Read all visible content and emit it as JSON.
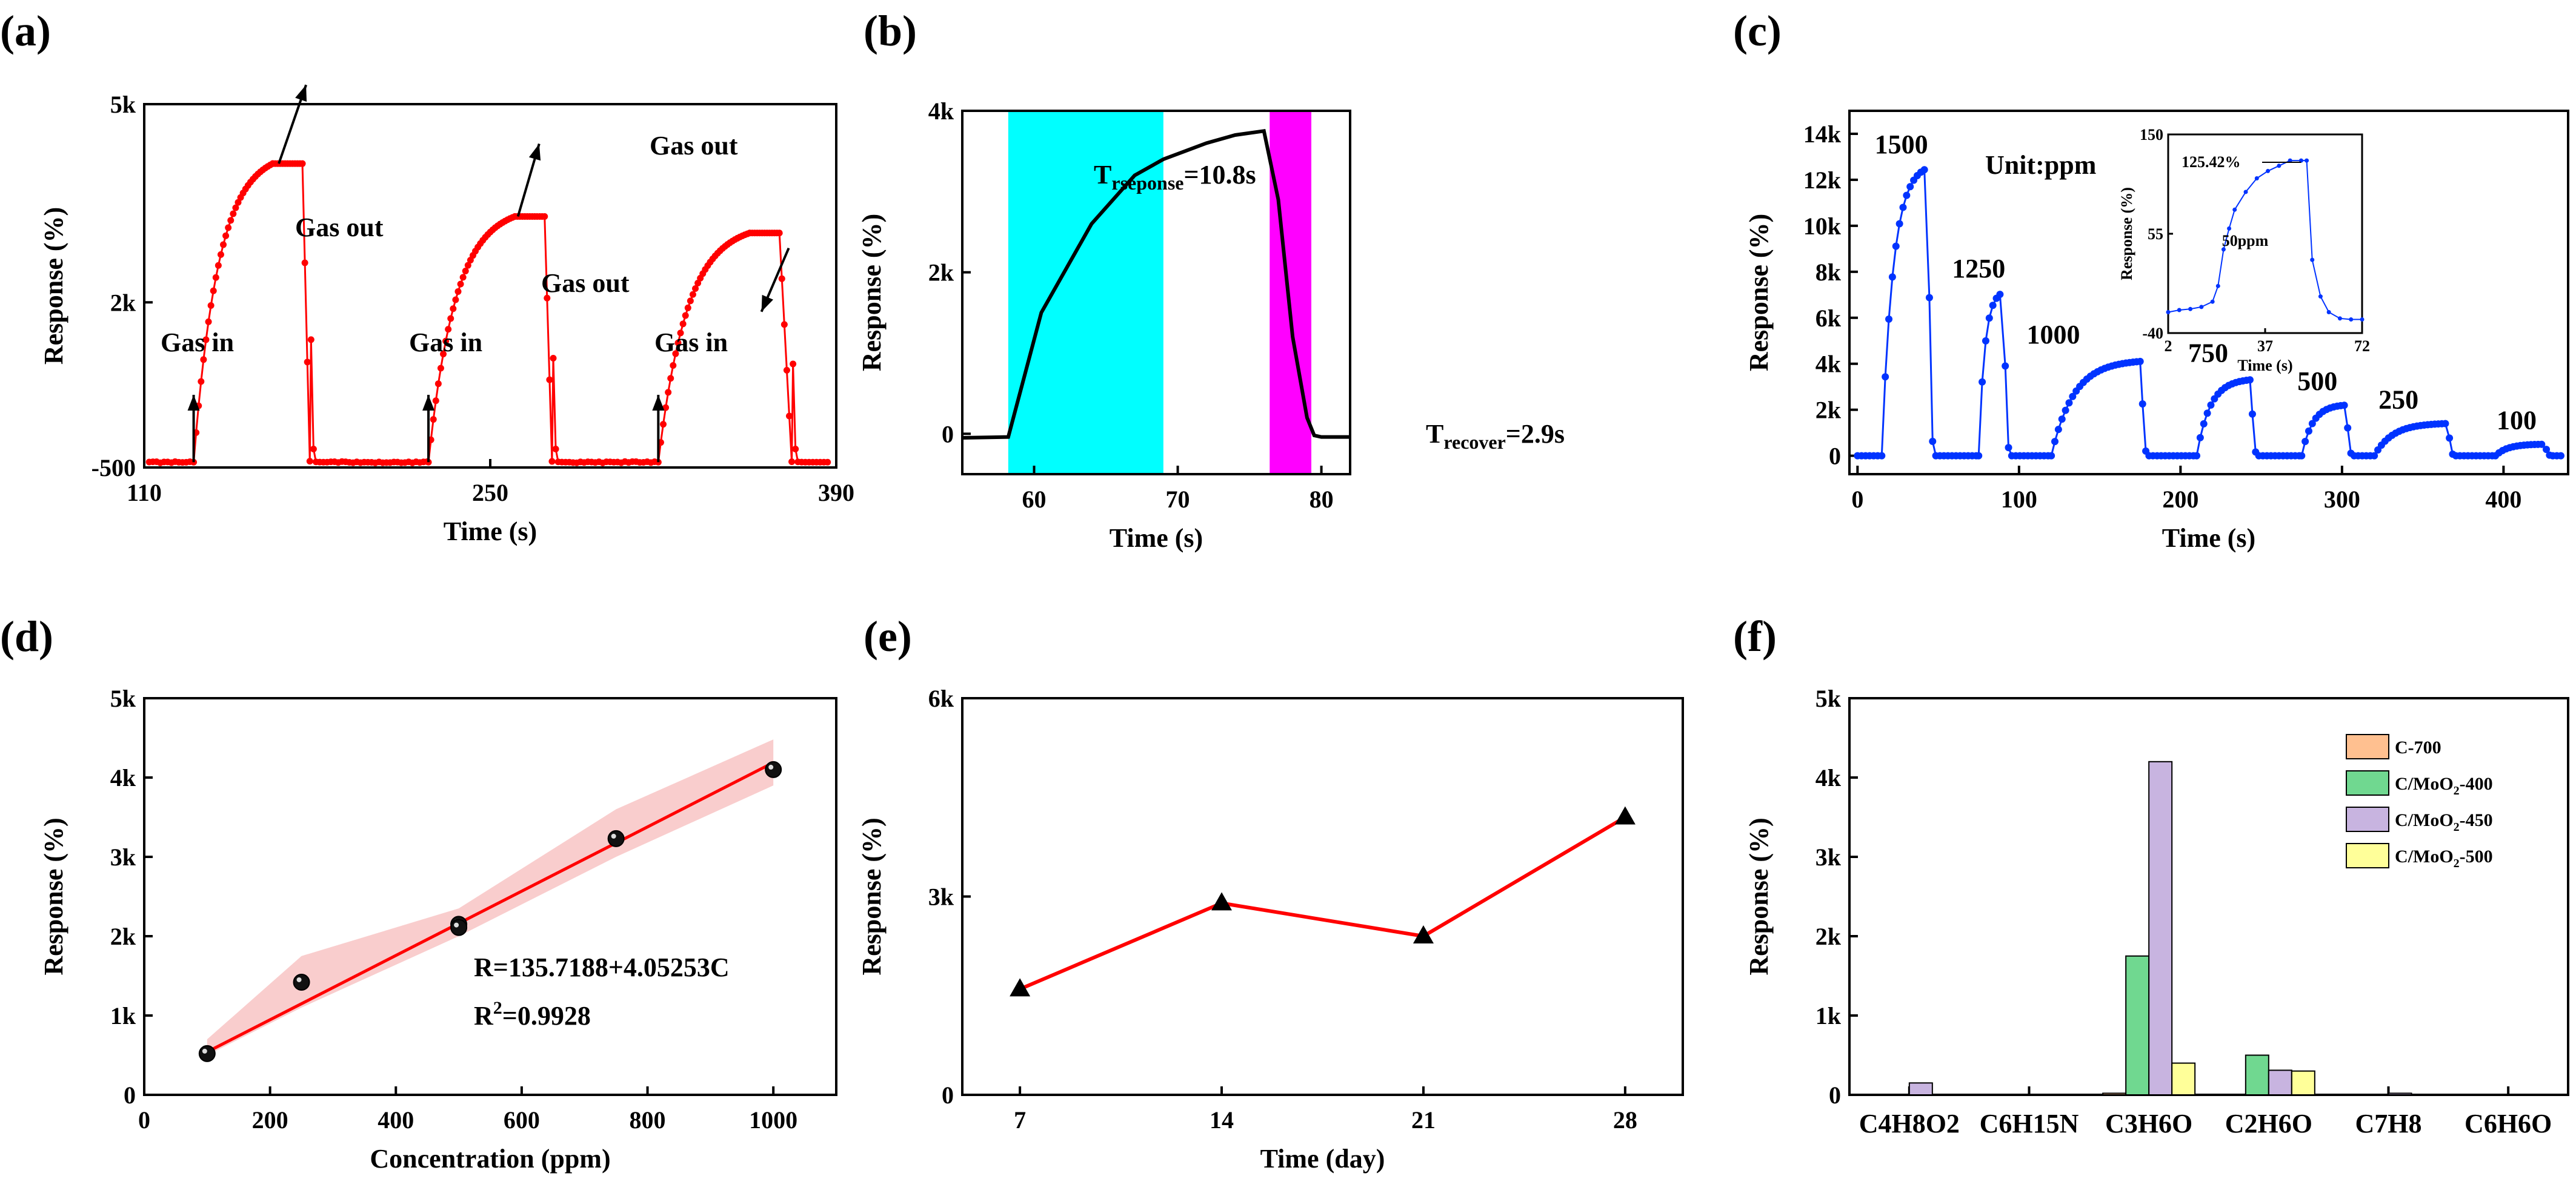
{
  "colors": {
    "red": "#ff0000",
    "blue": "#0033ff",
    "cyan": "#00ffff",
    "magenta": "#ff00ff",
    "black": "#000000",
    "c700": "#ffc090",
    "c400": "#70d890",
    "c450": "#c8b4e0",
    "c500": "#ffff99",
    "band": "#f7c0c0"
  },
  "chart_data": [
    {
      "id": "a",
      "panel_label": "(a)",
      "type": "line",
      "xlabel": "Time (s)",
      "ylabel": "Response (%)",
      "xlim": [
        110,
        390
      ],
      "ylim": [
        -500,
        5000
      ],
      "xticks": [
        {
          "v": 110,
          "t": "110"
        },
        {
          "v": 250,
          "t": "250"
        },
        {
          "v": 390,
          "t": "390"
        }
      ],
      "yticks": [
        {
          "v": -500,
          "t": "-500"
        },
        {
          "v": 2000,
          "t": "2k"
        },
        {
          "v": 5000,
          "t": "5k"
        }
      ],
      "cycles": [
        {
          "on": 130,
          "peak": 162,
          "off": 177,
          "pmax": 4100
        },
        {
          "on": 225,
          "peak": 260,
          "off": 275,
          "pmax": 3300
        },
        {
          "on": 318,
          "peak": 355,
          "off": 372,
          "pmax": 3050
        }
      ],
      "annotations": [
        "Gas in",
        "Gas out",
        "Gas in",
        "Gas out",
        "Gas in",
        "Gas out"
      ]
    },
    {
      "id": "b",
      "panel_label": "(b)",
      "type": "line",
      "xlabel": "Time (s)",
      "ylabel": "Response (%)",
      "xlim": [
        55,
        82
      ],
      "ylim": [
        -500,
        4000
      ],
      "xticks": [
        {
          "v": 60,
          "t": "60"
        },
        {
          "v": 70,
          "t": "70"
        },
        {
          "v": 80,
          "t": "80"
        }
      ],
      "yticks": [
        {
          "v": 0,
          "t": "0"
        },
        {
          "v": 2000,
          "t": "2k"
        },
        {
          "v": 4000,
          "t": "4k"
        }
      ],
      "x": [
        55,
        58.2,
        60.5,
        64,
        67,
        69,
        72,
        74,
        76,
        77,
        78,
        79,
        79.5,
        80,
        82
      ],
      "y": [
        -50,
        -40,
        1500,
        2600,
        3200,
        3400,
        3600,
        3700,
        3750,
        2900,
        1200,
        200,
        -20,
        -40,
        -40
      ],
      "response_window": [
        58.2,
        69
      ],
      "recover_window": [
        76.4,
        79.3
      ],
      "t_response_label": "T",
      "t_response_sub": "rseponse",
      "t_response_value": "=10.8s",
      "t_recover_label": "T",
      "t_recover_sub": "recover",
      "t_recover_value": "=2.9s"
    },
    {
      "id": "c",
      "panel_label": "(c)",
      "type": "scatter",
      "xlabel": "Time (s)",
      "ylabel": "Response (%)",
      "xlim": [
        -5,
        440
      ],
      "ylim": [
        -800,
        15000
      ],
      "xticks": [
        {
          "v": 0,
          "t": "0"
        },
        {
          "v": 100,
          "t": "100"
        },
        {
          "v": 200,
          "t": "200"
        },
        {
          "v": 300,
          "t": "300"
        },
        {
          "v": 400,
          "t": "400"
        }
      ],
      "yticks": [
        {
          "v": 0,
          "t": "0"
        },
        {
          "v": 2000,
          "t": "2k"
        },
        {
          "v": 4000,
          "t": "4k"
        },
        {
          "v": 6000,
          "t": "6k"
        },
        {
          "v": 8000,
          "t": "8k"
        },
        {
          "v": 10000,
          "t": "10k"
        },
        {
          "v": 12000,
          "t": "12k"
        },
        {
          "v": 14000,
          "t": "14k"
        }
      ],
      "pulses": [
        {
          "on": 15,
          "off": 43,
          "max": 12500,
          "label": "1500"
        },
        {
          "on": 75,
          "off": 90,
          "max": 7100,
          "label": "1250"
        },
        {
          "on": 120,
          "off": 175,
          "max": 4100,
          "label": "1000"
        },
        {
          "on": 210,
          "off": 243,
          "max": 3300,
          "label": "750"
        },
        {
          "on": 275,
          "off": 302,
          "max": 2200,
          "label": "500"
        },
        {
          "on": 320,
          "off": 365,
          "max": 1400,
          "label": "250"
        },
        {
          "on": 395,
          "off": 425,
          "max": 500,
          "label": "100"
        }
      ],
      "unit_label": "Unit:ppm",
      "inset": {
        "xlabel": "Time (s)",
        "ylabel": "Response (%)",
        "xlim": [
          2,
          72
        ],
        "ylim": [
          -40,
          150
        ],
        "xticks": [
          {
            "v": 2,
            "t": "2"
          },
          {
            "v": 37,
            "t": "37"
          },
          {
            "v": 72,
            "t": "72"
          }
        ],
        "yticks": [
          {
            "v": -40,
            "t": "-40"
          },
          {
            "v": 55,
            "t": "55"
          },
          {
            "v": 150,
            "t": "150"
          }
        ],
        "x": [
          2,
          6,
          10,
          14,
          18,
          20,
          22,
          24,
          26,
          30,
          34,
          38,
          42,
          46,
          50,
          52,
          54,
          57,
          60,
          64,
          68,
          72
        ],
        "y": [
          -20,
          -18,
          -17,
          -15,
          -10,
          5,
          40,
          60,
          78,
          95,
          108,
          115,
          120,
          125,
          125,
          125,
          30,
          -5,
          -20,
          -26,
          -27,
          -27
        ],
        "peak_label": "125.42%",
        "conc_label": "50ppm"
      }
    },
    {
      "id": "d",
      "panel_label": "(d)",
      "type": "scatter",
      "xlabel": "Concentration (ppm)",
      "ylabel": "Response (%)",
      "xlim": [
        0,
        1100
      ],
      "ylim": [
        0,
        5000
      ],
      "xticks": [
        {
          "v": 0,
          "t": "0"
        },
        {
          "v": 200,
          "t": "200"
        },
        {
          "v": 400,
          "t": "400"
        },
        {
          "v": 600,
          "t": "600"
        },
        {
          "v": 800,
          "t": "800"
        },
        {
          "v": 1000,
          "t": "1000"
        }
      ],
      "yticks": [
        {
          "v": 0,
          "t": "0"
        },
        {
          "v": 1000,
          "t": "1k"
        },
        {
          "v": 2000,
          "t": "2k"
        },
        {
          "v": 3000,
          "t": "3k"
        },
        {
          "v": 4000,
          "t": "4k"
        },
        {
          "v": 5000,
          "t": "5k"
        }
      ],
      "x": [
        100,
        250,
        500,
        500,
        750,
        1000
      ],
      "y": [
        520,
        1420,
        2150,
        2110,
        3230,
        4100
      ],
      "fit": {
        "intercept": 135.7188,
        "slope": 4.05253,
        "equation": "R=135.7188+4.05253C",
        "r2_label": "R",
        "r2_sup": "2",
        "r2_value": "=0.9928"
      },
      "band_upper": [
        [
          100,
          700
        ],
        [
          250,
          1750
        ],
        [
          500,
          2350
        ],
        [
          750,
          3600
        ],
        [
          1000,
          4480
        ]
      ],
      "band_lower": [
        [
          100,
          500
        ],
        [
          250,
          1100
        ],
        [
          500,
          2000
        ],
        [
          750,
          3000
        ],
        [
          1000,
          3900
        ]
      ]
    },
    {
      "id": "e",
      "panel_label": "(e)",
      "type": "line",
      "xlabel": "Time (day)",
      "ylabel": "Response (%)",
      "xlim": [
        5,
        30
      ],
      "ylim": [
        0,
        6000
      ],
      "xticks": [
        {
          "v": 7,
          "t": "7"
        },
        {
          "v": 14,
          "t": "14"
        },
        {
          "v": 21,
          "t": "21"
        },
        {
          "v": 28,
          "t": "28"
        }
      ],
      "yticks": [
        {
          "v": 0,
          "t": "0"
        },
        {
          "v": 3000,
          "t": "3k"
        },
        {
          "v": 6000,
          "t": "6k"
        }
      ],
      "x": [
        7,
        14,
        21,
        28
      ],
      "y": [
        1600,
        2900,
        2400,
        4200
      ]
    },
    {
      "id": "f",
      "panel_label": "(f)",
      "type": "bar",
      "xlabel": "",
      "ylabel": "Response (%)",
      "ylim": [
        0,
        5000
      ],
      "yticks": [
        {
          "v": 0,
          "t": "0"
        },
        {
          "v": 1000,
          "t": "1k"
        },
        {
          "v": 2000,
          "t": "2k"
        },
        {
          "v": 3000,
          "t": "3k"
        },
        {
          "v": 4000,
          "t": "4k"
        },
        {
          "v": 5000,
          "t": "5k"
        }
      ],
      "categories": [
        "C4H8O2",
        "C6H15N",
        "C3H6O",
        "C2H6O",
        "C7H8",
        "C6H6O"
      ],
      "series": [
        {
          "name": "C-700",
          "legend_pre": "C-700",
          "legend_sub": "",
          "legend_post": "",
          "color": "#ffc090",
          "values": [
            0,
            0,
            20,
            0,
            0,
            0
          ]
        },
        {
          "name": "C/MoO2-400",
          "legend_pre": "C/MoO",
          "legend_sub": "2",
          "legend_post": "-400",
          "color": "#70d890",
          "values": [
            0,
            0,
            1750,
            500,
            0,
            0
          ]
        },
        {
          "name": "C/MoO2-450",
          "legend_pre": "C/MoO",
          "legend_sub": "2",
          "legend_post": "-450",
          "color": "#c8b4e0",
          "values": [
            150,
            0,
            4200,
            310,
            20,
            0
          ]
        },
        {
          "name": "C/MoO2-500",
          "legend_pre": "C/MoO",
          "legend_sub": "2",
          "legend_post": "-500",
          "color": "#ffff99",
          "values": [
            0,
            0,
            400,
            300,
            0,
            0
          ]
        }
      ]
    }
  ]
}
